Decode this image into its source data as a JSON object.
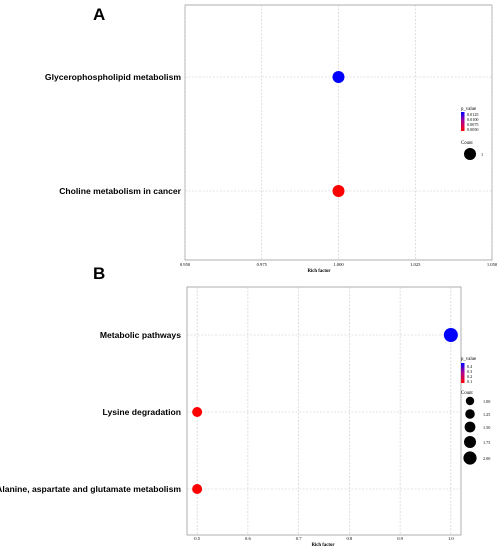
{
  "colors": {
    "low": "#ff0000",
    "high": "#0000ff"
  },
  "chart_data": [
    {
      "panel_label": "A",
      "type": "scatter",
      "xlabel": "Rich factor",
      "xlim": [
        0.95,
        1.05
      ],
      "x_ticks": [
        "0.950",
        "0.975",
        "1.000",
        "1.025",
        "1.050"
      ],
      "x_tick_values": [
        0.95,
        0.975,
        1.0,
        1.025,
        1.05
      ],
      "categories": [
        "Glycerophospholipid metabolism",
        "Choline metabolism in cancer"
      ],
      "points": [
        {
          "category": "Glycerophospholipid metabolism",
          "rich_factor": 1.0,
          "p_value": 0.0125,
          "count": 1
        },
        {
          "category": "Choline metabolism in cancer",
          "rich_factor": 1.0,
          "p_value": 0.005,
          "count": 1
        }
      ],
      "color_legend": {
        "title": "p_value",
        "ticks": [
          "0.0125",
          "0.0100",
          "0.0075",
          "0.0050"
        ],
        "min": 0.005,
        "max": 0.0125
      },
      "size_legend": {
        "title": "Count",
        "values": [
          1
        ],
        "labels": [
          "1"
        ]
      },
      "grid": true
    },
    {
      "panel_label": "B",
      "type": "scatter",
      "xlabel": "Rich factor",
      "xlim": [
        0.48,
        1.02
      ],
      "x_ticks": [
        "0.5",
        "0.6",
        "0.7",
        "0.8",
        "0.9",
        "1.0"
      ],
      "x_tick_values": [
        0.5,
        0.6,
        0.7,
        0.8,
        0.9,
        1.0
      ],
      "categories": [
        "Metabolic pathways",
        "Lysine degradation",
        "Alanine, aspartate and glutamate metabolism"
      ],
      "points": [
        {
          "category": "Metabolic pathways",
          "rich_factor": 1.0,
          "p_value": 0.4,
          "count": 2
        },
        {
          "category": "Lysine degradation",
          "rich_factor": 0.5,
          "p_value": 0.05,
          "count": 1
        },
        {
          "category": "Alanine, aspartate and glutamate metabolism",
          "rich_factor": 0.5,
          "p_value": 0.05,
          "count": 1
        }
      ],
      "color_legend": {
        "title": "p_value",
        "ticks": [
          "0.4",
          "0.3",
          "0.2",
          "0.1"
        ],
        "min": 0.05,
        "max": 0.4
      },
      "size_legend": {
        "title": "Count",
        "values": [
          1.0,
          1.25,
          1.5,
          1.75,
          2.0
        ],
        "labels": [
          "1.00",
          "1.25",
          "1.50",
          "1.75",
          "2.00"
        ]
      },
      "grid": true
    }
  ]
}
